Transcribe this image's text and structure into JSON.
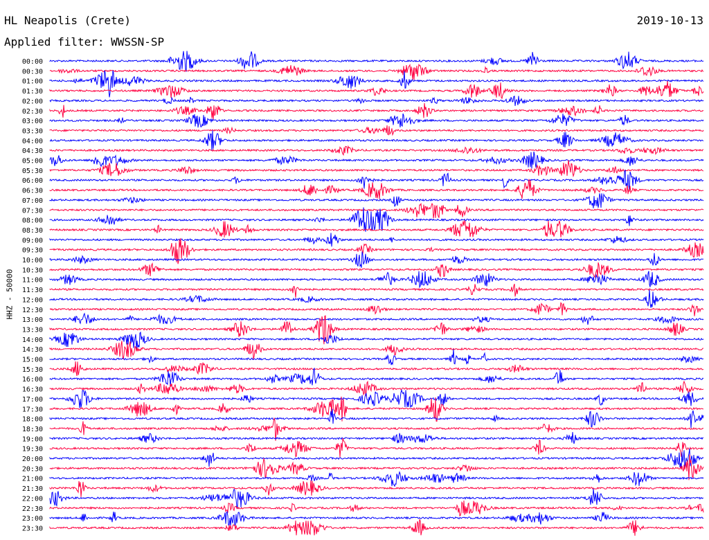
{
  "header": {
    "station": "HL Neapolis (Crete)",
    "date": "2019-10-13",
    "filter": "Applied filter: WWSSN-SP"
  },
  "chart_data": {
    "type": "line",
    "ylabel": "HHZ - 50000",
    "colors": {
      "odd_series": "#0000ff",
      "even_series": "#ff0040"
    },
    "series": [
      {
        "name": "00:00"
      },
      {
        "name": "00:30"
      },
      {
        "name": "01:00"
      },
      {
        "name": "01:30"
      },
      {
        "name": "02:00"
      },
      {
        "name": "02:30"
      },
      {
        "name": "03:00"
      },
      {
        "name": "03:30"
      },
      {
        "name": "04:00"
      },
      {
        "name": "04:30"
      },
      {
        "name": "05:00"
      },
      {
        "name": "05:30"
      },
      {
        "name": "06:00"
      },
      {
        "name": "06:30"
      },
      {
        "name": "07:00"
      },
      {
        "name": "07:30"
      },
      {
        "name": "08:00"
      },
      {
        "name": "08:30"
      },
      {
        "name": "09:00"
      },
      {
        "name": "09:30"
      },
      {
        "name": "10:00"
      },
      {
        "name": "10:30"
      },
      {
        "name": "11:00"
      },
      {
        "name": "11:30"
      },
      {
        "name": "12:00"
      },
      {
        "name": "12:30"
      },
      {
        "name": "13:00"
      },
      {
        "name": "13:30"
      },
      {
        "name": "14:00"
      },
      {
        "name": "14:30"
      },
      {
        "name": "15:00"
      },
      {
        "name": "15:30"
      },
      {
        "name": "16:00"
      },
      {
        "name": "16:30"
      },
      {
        "name": "17:00"
      },
      {
        "name": "17:30"
      },
      {
        "name": "18:00"
      },
      {
        "name": "18:30"
      },
      {
        "name": "19:00"
      },
      {
        "name": "19:30"
      },
      {
        "name": "20:00"
      },
      {
        "name": "20:30"
      },
      {
        "name": "21:00"
      },
      {
        "name": "21:30"
      },
      {
        "name": "22:00"
      },
      {
        "name": "22:30"
      },
      {
        "name": "23:00"
      },
      {
        "name": "23:30"
      }
    ]
  }
}
